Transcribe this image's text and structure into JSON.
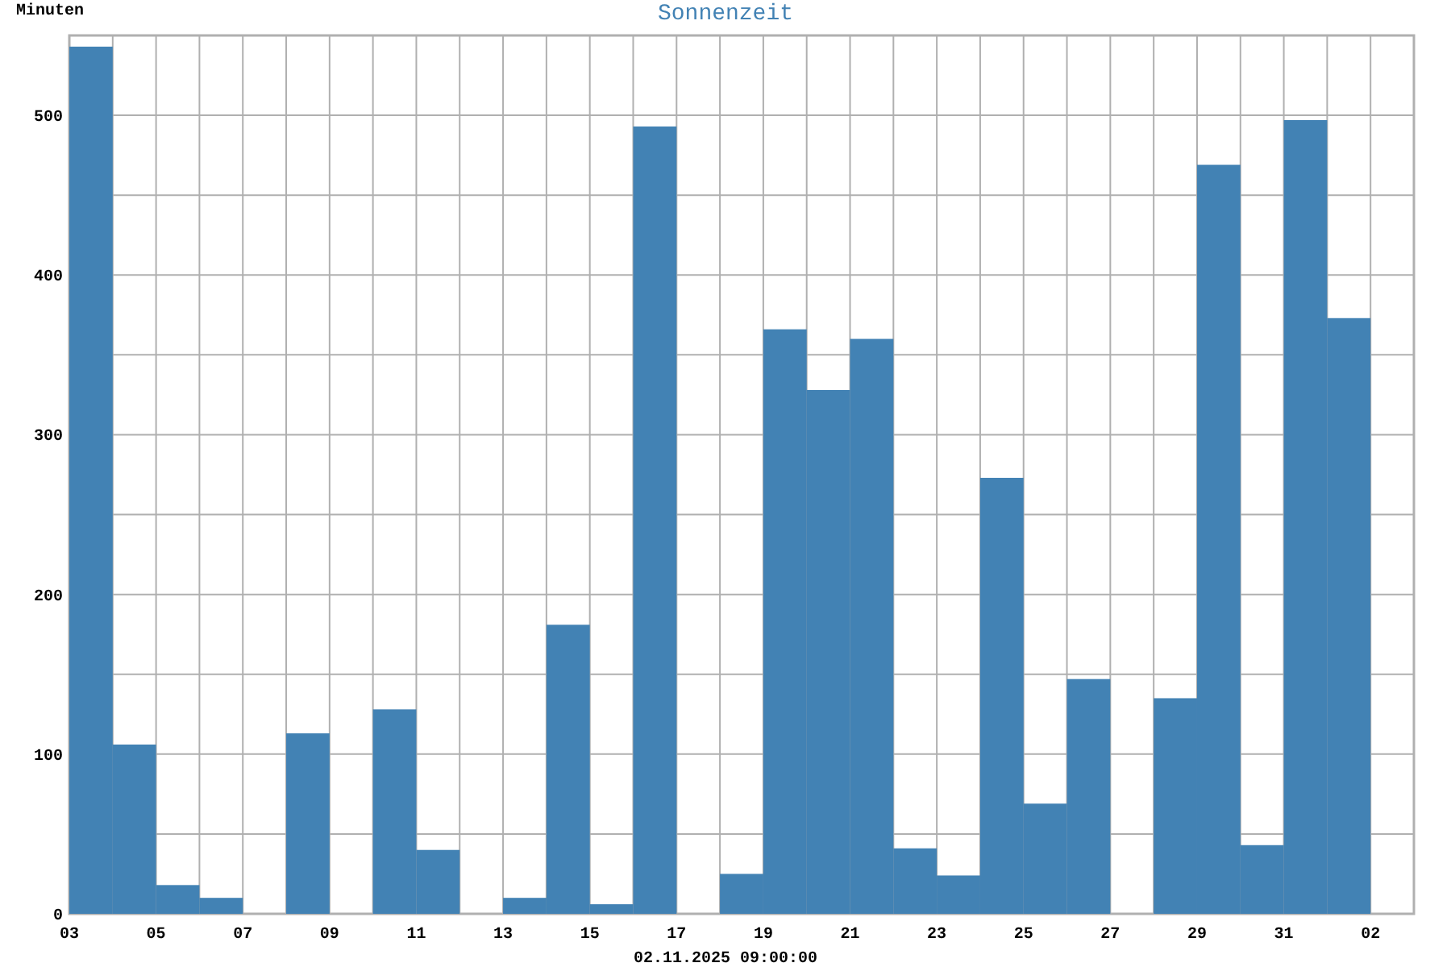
{
  "chart_data": {
    "type": "bar",
    "title": "Sonnenzeit",
    "ylabel": "Minuten",
    "annotations": [
      "02.11.2025 09:00:00"
    ],
    "x": [
      "2025-10-03T12:00",
      "2025-10-04T12:00",
      "2025-10-05T12:00",
      "2025-10-06T12:00",
      "2025-10-07T12:00",
      "2025-10-08T12:00",
      "2025-10-09T12:00",
      "2025-10-10T12:00",
      "2025-10-11T12:00",
      "2025-10-12T12:00",
      "2025-10-13T12:00",
      "2025-10-14T12:00",
      "2025-10-15T12:00",
      "2025-10-16T12:00",
      "2025-10-17T12:00",
      "2025-10-18T12:00",
      "2025-10-19T12:00",
      "2025-10-20T12:00",
      "2025-10-21T12:00",
      "2025-10-22T12:00",
      "2025-10-23T12:00",
      "2025-10-24T12:00",
      "2025-10-25T12:00",
      "2025-10-26T12:00",
      "2025-10-27T12:00",
      "2025-10-28T12:00",
      "2025-10-29T12:00",
      "2025-10-30T12:00",
      "2025-10-31T12:00",
      "2025-11-01T12:00"
    ],
    "values": [
      543,
      106,
      18,
      10,
      0,
      113,
      0,
      128,
      40,
      0,
      10,
      181,
      6,
      493,
      0,
      25,
      366,
      328,
      360,
      41,
      24,
      273,
      69,
      147,
      0,
      135,
      469,
      43,
      497,
      373
    ],
    "color": "#4282b4",
    "ylim": [
      0,
      550
    ],
    "yticks": [
      0,
      {
        "value": 50,
        "label": null
      },
      100,
      {
        "value": 150,
        "label": null
      },
      200,
      {
        "value": 250,
        "label": null
      },
      300,
      {
        "value": 350,
        "label": null
      },
      400,
      {
        "value": 450,
        "label": null
      },
      500
    ],
    "xlim": [
      "2025-10-03",
      "2025-11-03"
    ],
    "xticks": [
      {
        "value": "2025-10-03",
        "label": "03"
      },
      {
        "value": "2025-10-04",
        "label": null
      },
      {
        "value": "2025-10-05",
        "label": "05"
      },
      {
        "value": "2025-10-06",
        "label": null
      },
      {
        "value": "2025-10-07",
        "label": "07"
      },
      {
        "value": "2025-10-08",
        "label": null
      },
      {
        "value": "2025-10-09",
        "label": "09"
      },
      {
        "value": "2025-10-10",
        "label": null
      },
      {
        "value": "2025-10-11",
        "label": "11"
      },
      {
        "value": "2025-10-12",
        "label": null
      },
      {
        "value": "2025-10-13",
        "label": "13"
      },
      {
        "value": "2025-10-14",
        "label": null
      },
      {
        "value": "2025-10-15",
        "label": "15"
      },
      {
        "value": "2025-10-16",
        "label": null
      },
      {
        "value": "2025-10-17",
        "label": "17"
      },
      {
        "value": "2025-10-18",
        "label": null
      },
      {
        "value": "2025-10-19",
        "label": "19"
      },
      {
        "value": "2025-10-20",
        "label": null
      },
      {
        "value": "2025-10-21",
        "label": "21"
      },
      {
        "value": "2025-10-22",
        "label": null
      },
      {
        "value": "2025-10-23",
        "label": "23"
      },
      {
        "value": "2025-10-24",
        "label": null
      },
      {
        "value": "2025-10-25",
        "label": "25"
      },
      {
        "value": "2025-10-26",
        "label": null
      },
      {
        "value": "2025-10-27",
        "label": "27"
      },
      {
        "value": "2025-10-28",
        "label": null
      },
      {
        "value": "2025-10-29",
        "label": "29"
      },
      {
        "value": "2025-10-30",
        "label": null
      },
      {
        "value": "2025-10-31",
        "label": "31"
      },
      {
        "value": "2025-11-01",
        "label": null
      },
      {
        "value": "2025-11-02",
        "label": "02"
      },
      {
        "value": "2025-11-03",
        "label": null
      }
    ],
    "grid": true
  }
}
